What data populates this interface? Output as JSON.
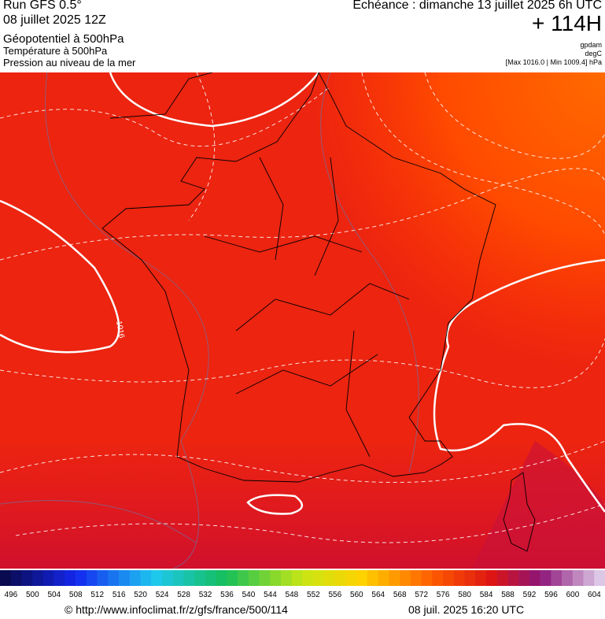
{
  "header": {
    "run": "Run GFS 0.5°",
    "date": "08 juillet 2025 12Z",
    "layer1": "Géopotentiel à 500hPa",
    "layer2": "Température à 500hPa",
    "layer3": "Pression au niveau de la mer",
    "echeance": "Echéance : dimanche 13 juillet 2025 6h UTC",
    "offset": "+ 114H",
    "unit1": "gpdam",
    "unit2": "degC",
    "range": "[Max 1016.0 | Min 1009.4] hPa"
  },
  "map": {
    "contour_label": "1016"
  },
  "scale": {
    "labels": [
      "496",
      "500",
      "504",
      "508",
      "512",
      "516",
      "520",
      "524",
      "528",
      "532",
      "536",
      "540",
      "544",
      "548",
      "552",
      "556",
      "560",
      "564",
      "568",
      "572",
      "576",
      "580",
      "584",
      "588",
      "592",
      "596",
      "600",
      "604"
    ]
  },
  "footer": {
    "url": "© http://www.infoclimat.fr/z/gfs/france/500/114",
    "timestamp": "08 juil. 2025 16:20 UTC"
  }
}
